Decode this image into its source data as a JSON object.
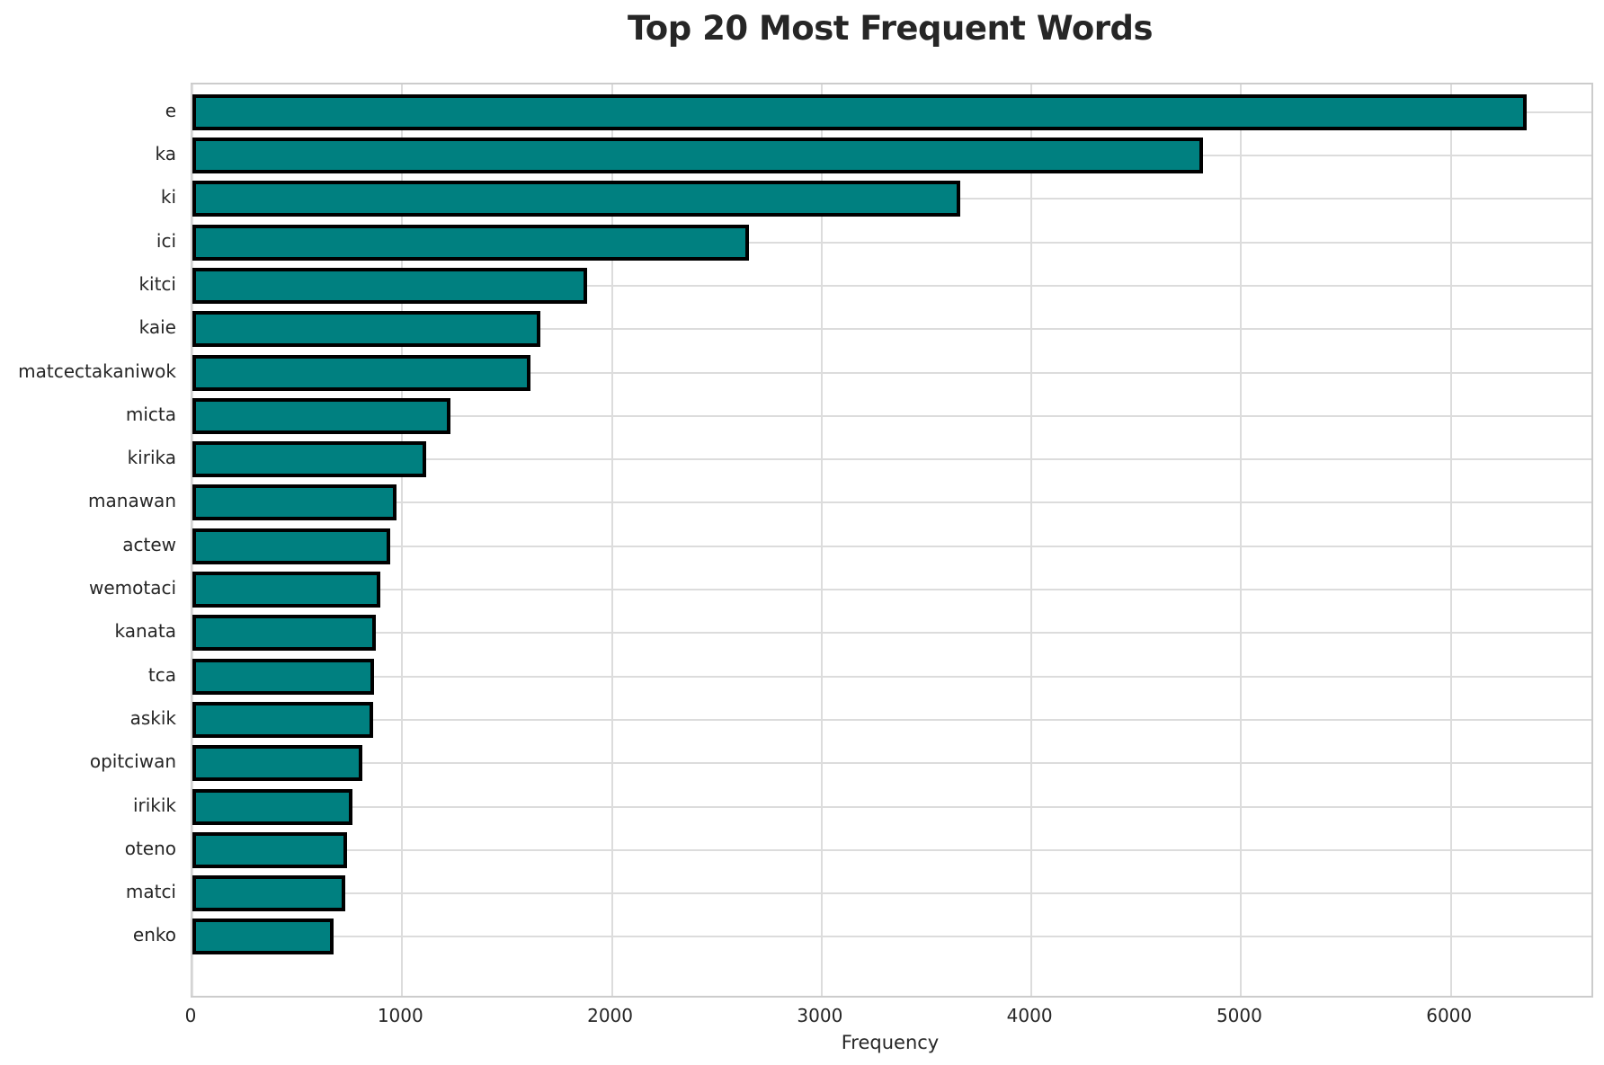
{
  "chart_data": {
    "type": "bar",
    "orientation": "horizontal",
    "title": "Top 20 Most Frequent Words",
    "xlabel": "Frequency",
    "ylabel": "",
    "categories": [
      "e",
      "ka",
      "ki",
      "ici",
      "kitci",
      "kaie",
      "matcectakaniwok",
      "micta",
      "kirika",
      "manawan",
      "actew",
      "wemotaci",
      "kanata",
      "tca",
      "askik",
      "opitciwan",
      "irikik",
      "oteno",
      "matci",
      "enko"
    ],
    "values": [
      6360,
      4820,
      3660,
      2655,
      1880,
      1660,
      1610,
      1230,
      1115,
      975,
      945,
      898,
      875,
      868,
      862,
      812,
      763,
      736,
      727,
      675
    ],
    "xlim": [
      0,
      6670
    ],
    "xticks": [
      0,
      1000,
      2000,
      3000,
      4000,
      5000,
      6000
    ],
    "xtick_labels": [
      "0",
      "1000",
      "2000",
      "3000",
      "4000",
      "5000",
      "6000"
    ],
    "grid": true,
    "legend": "none",
    "bar_color": "#008080",
    "bar_edge_color": "#000000",
    "grid_color": "#dcdcdc",
    "spine_color": "#cccccc",
    "text_color": "#262626"
  }
}
